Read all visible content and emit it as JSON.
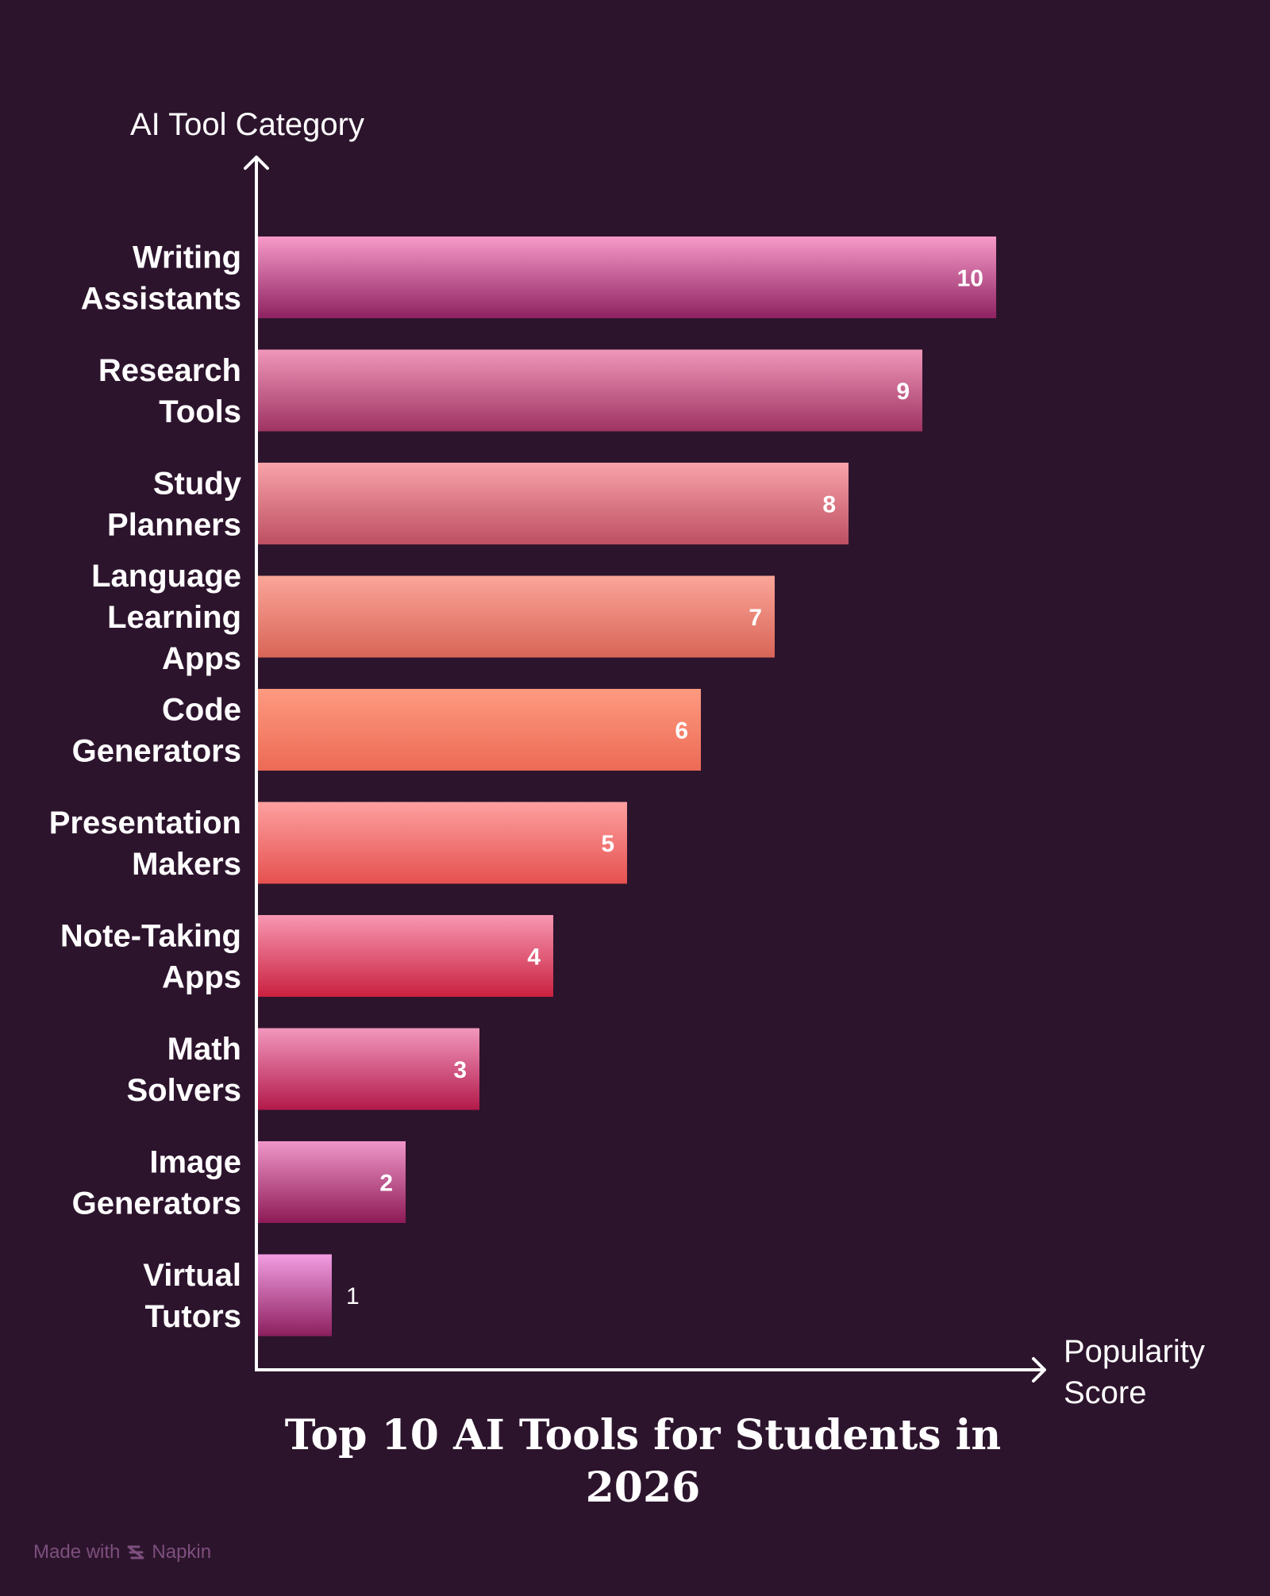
{
  "chart_data": {
    "type": "bar",
    "orientation": "horizontal",
    "title": "Top 10 AI Tools for Students in 2026",
    "xlabel": "Popularity Score",
    "ylabel": "AI Tool Category",
    "categories": [
      "Writing Assistants",
      "Research Tools",
      "Study Planners",
      "Language Learning Apps",
      "Code Generators",
      "Presentation Makers",
      "Note-Taking Apps",
      "Math Solvers",
      "Image Generators",
      "Virtual Tutors"
    ],
    "values": [
      10,
      9,
      8,
      7,
      6,
      5,
      4,
      3,
      2,
      1
    ],
    "xlim": [
      0,
      10
    ],
    "grid": false,
    "legend": "none",
    "colors": [
      [
        "#f79ac9",
        "#8e2261"
      ],
      [
        "#f097ba",
        "#9e3362"
      ],
      [
        "#f9a3a9",
        "#bd4f63"
      ],
      [
        "#fba599",
        "#d86557"
      ],
      [
        "#fe9a80",
        "#ec6a55"
      ],
      [
        "#fda0a0",
        "#e5514f"
      ],
      [
        "#f897b2",
        "#c9213f"
      ],
      [
        "#f297bd",
        "#b21a4a"
      ],
      [
        "#ef96c9",
        "#8e1a56"
      ],
      [
        "#f29de2",
        "#8c1f5e"
      ]
    ]
  },
  "footer": {
    "made_with": "Made with",
    "brand": "Napkin"
  }
}
